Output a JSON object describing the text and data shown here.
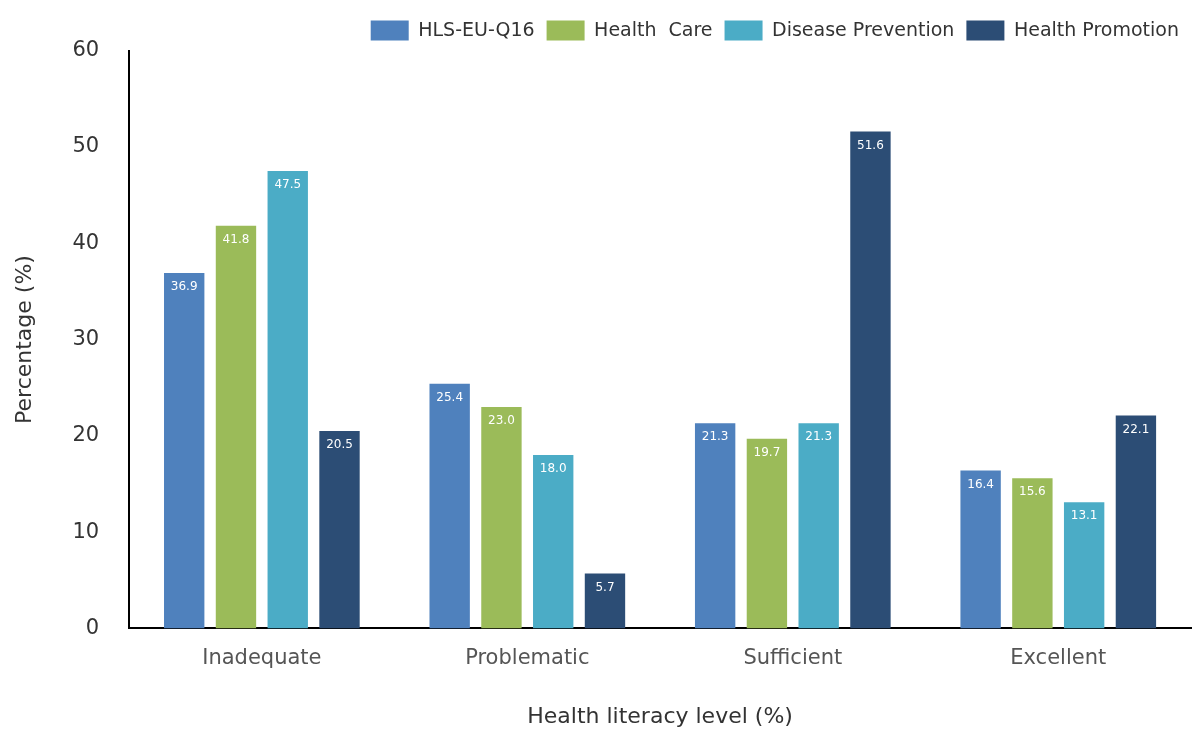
{
  "chart_data": {
    "type": "bar",
    "xlabel": "Health literacy level (%)",
    "ylabel": "Percentage (%)",
    "categories": [
      "Inadequate",
      "Problematic",
      "Sufficient",
      "Excellent"
    ],
    "series": [
      {
        "name": "HLS-EU-Q16",
        "color": "#4f81bd",
        "values": [
          36.9,
          25.4,
          21.3,
          16.4
        ],
        "value_labels": [
          "36.9",
          "25.4",
          "21.3",
          "16.4"
        ]
      },
      {
        "name": "Health  Care",
        "color": "#9bbb59",
        "values": [
          41.8,
          23.0,
          19.7,
          15.6
        ],
        "value_labels": [
          "41.8",
          "23.0",
          "19.7",
          "15.6"
        ]
      },
      {
        "name": "Disease Prevention",
        "color": "#4bacc6",
        "values": [
          47.5,
          18.0,
          21.3,
          13.1
        ],
        "value_labels": [
          "47.5",
          "18.0",
          "21.3",
          "13.1"
        ]
      },
      {
        "name": "Health Promotion",
        "color": "#2c4d75",
        "values": [
          20.5,
          5.7,
          51.6,
          22.1
        ],
        "value_labels": [
          "20.5",
          "5.7",
          "51.6",
          "22.1"
        ]
      }
    ],
    "ylim": [
      0,
      60
    ],
    "yticks": [
      0,
      10,
      20,
      30,
      40,
      50,
      60
    ],
    "grid": false,
    "legend": "top right"
  }
}
